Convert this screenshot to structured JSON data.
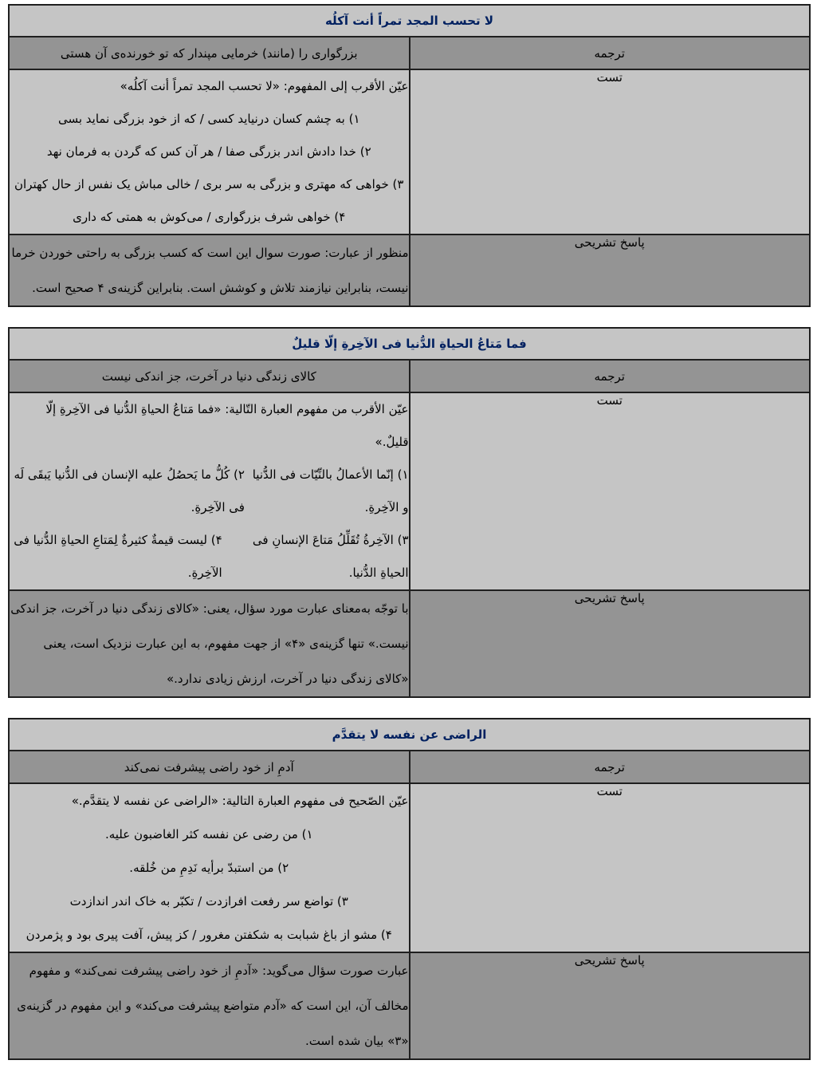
{
  "labels": {
    "translation": "ترجمه",
    "test": "تست",
    "answer": "پاسخ تشریحی"
  },
  "colors": {
    "title_text": "#002060",
    "row_light": "#c5c5c5",
    "row_dark": "#949494",
    "border": "#1f1f1f"
  },
  "tables": [
    {
      "title": "لا تحسب المجد تمراً أنت آکلُه",
      "translation": "بزرگواری را (مانند) خرمایی مپندار که تو خورنده‌ی آن هستی",
      "question": "عیّن الأقرب إلی المفهوم: «لا تحسب المجد تمراً أنت آکلُه»",
      "options": [
        "۱) به چشم کسان درنیاید کسی / که از خود بزرگی نماید بسی",
        "۲) خدا دادش اندر بزرگی صفا / هر آن کس که گردن به فرمان نهد",
        "۳) خواهی که مهتری و بزرگی به سر بری / خالی مباش یک نفس از حال کهتران",
        "۴) خواهی شرف بزرگواری / می‌کوش به همتی که داری"
      ],
      "answer": "منظور از عبارت: صورت سوال این است که کسب بزرگی به راحتی خوردن خرما نیست، بنابراین نیازمند تلاش و کوشش است. بنابراین گزینه‌ی ۴ صحیح است."
    },
    {
      "title": "فما مَتاعُ الحیاةِ الدُّنیا فی الآخِرةِ إلّا قلیلٌ",
      "translation": "کالای زندگی دنیا در آخرت، جز اندکی نیست",
      "question": "عیّن الأقرب من مفهوم العبارة التّالیة: «فما مَتاعُ الحیاةِ الدُّنیا فی الآخِرةِ إلّا قلیلٌ.»",
      "options": [
        "۱) إنّما الأعمالُ بالنِّیّات فی الدُّنیا و الآخِرةِ.",
        "۲) کُلُّ ما یَحصُلُ علیه الإنسان فی الدُّنیا یَبقَی لَه فی الآخِرةِ.",
        "۳) الآخِرةُ تُقَلِّلُ مَتاعَ الإنسانِ فی الحیاةِ الدُّنیا.",
        "۴) لیست قیمةٌ کثیرةٌ لِمَتاعِ الحیاةِ الدُّنیا فی الآخِرةِ."
      ],
      "answer": "با توجّه به‌معنای عبارت مورد سؤال، یعنی: «کالای زندگی دنیا در آخرت، جز اندکی نیست.» تنها گزینه‌ی «۴» از جهت مفهوم، به این عبارت نزدیک است، یعنی «کالای زندگی دنیا در آخرت، ارزش زیادی ندارد.»"
    },
    {
      "title": "الراضی عن نفسه لا یتقدَّم",
      "translation": "آدمِ از خود راضی پیشرفت نمی‌کند",
      "question": "عیّن الصّحیح فی مفهوم العبارة التالیة: «الراضی عن نفسه لا یتقدَّم.»",
      "options": [
        "۱) من رضی عن نفسه کثر الغاضبون علیه.",
        "۲) من استبدّ برأیه نَدِمِ من خُلقه.",
        "۳) تواضع سر رفعت افرازدت / تکبّر به خاک اندر اندازدت",
        "۴) مشو از باغ شبابت به شکفتن مغرور / کز پیش، آفت پیری بود و پژمردن"
      ],
      "answer": "عبارت صورت سؤال می‌گوید: «آدمِ از خود راضی پیشرفت نمی‌کند» و مفهوم مخالف آن، این است که «آدم متواضع پیشرفت می‌کند» و این مفهوم در گزینه‌ی «۳» بیان شده است."
    }
  ]
}
